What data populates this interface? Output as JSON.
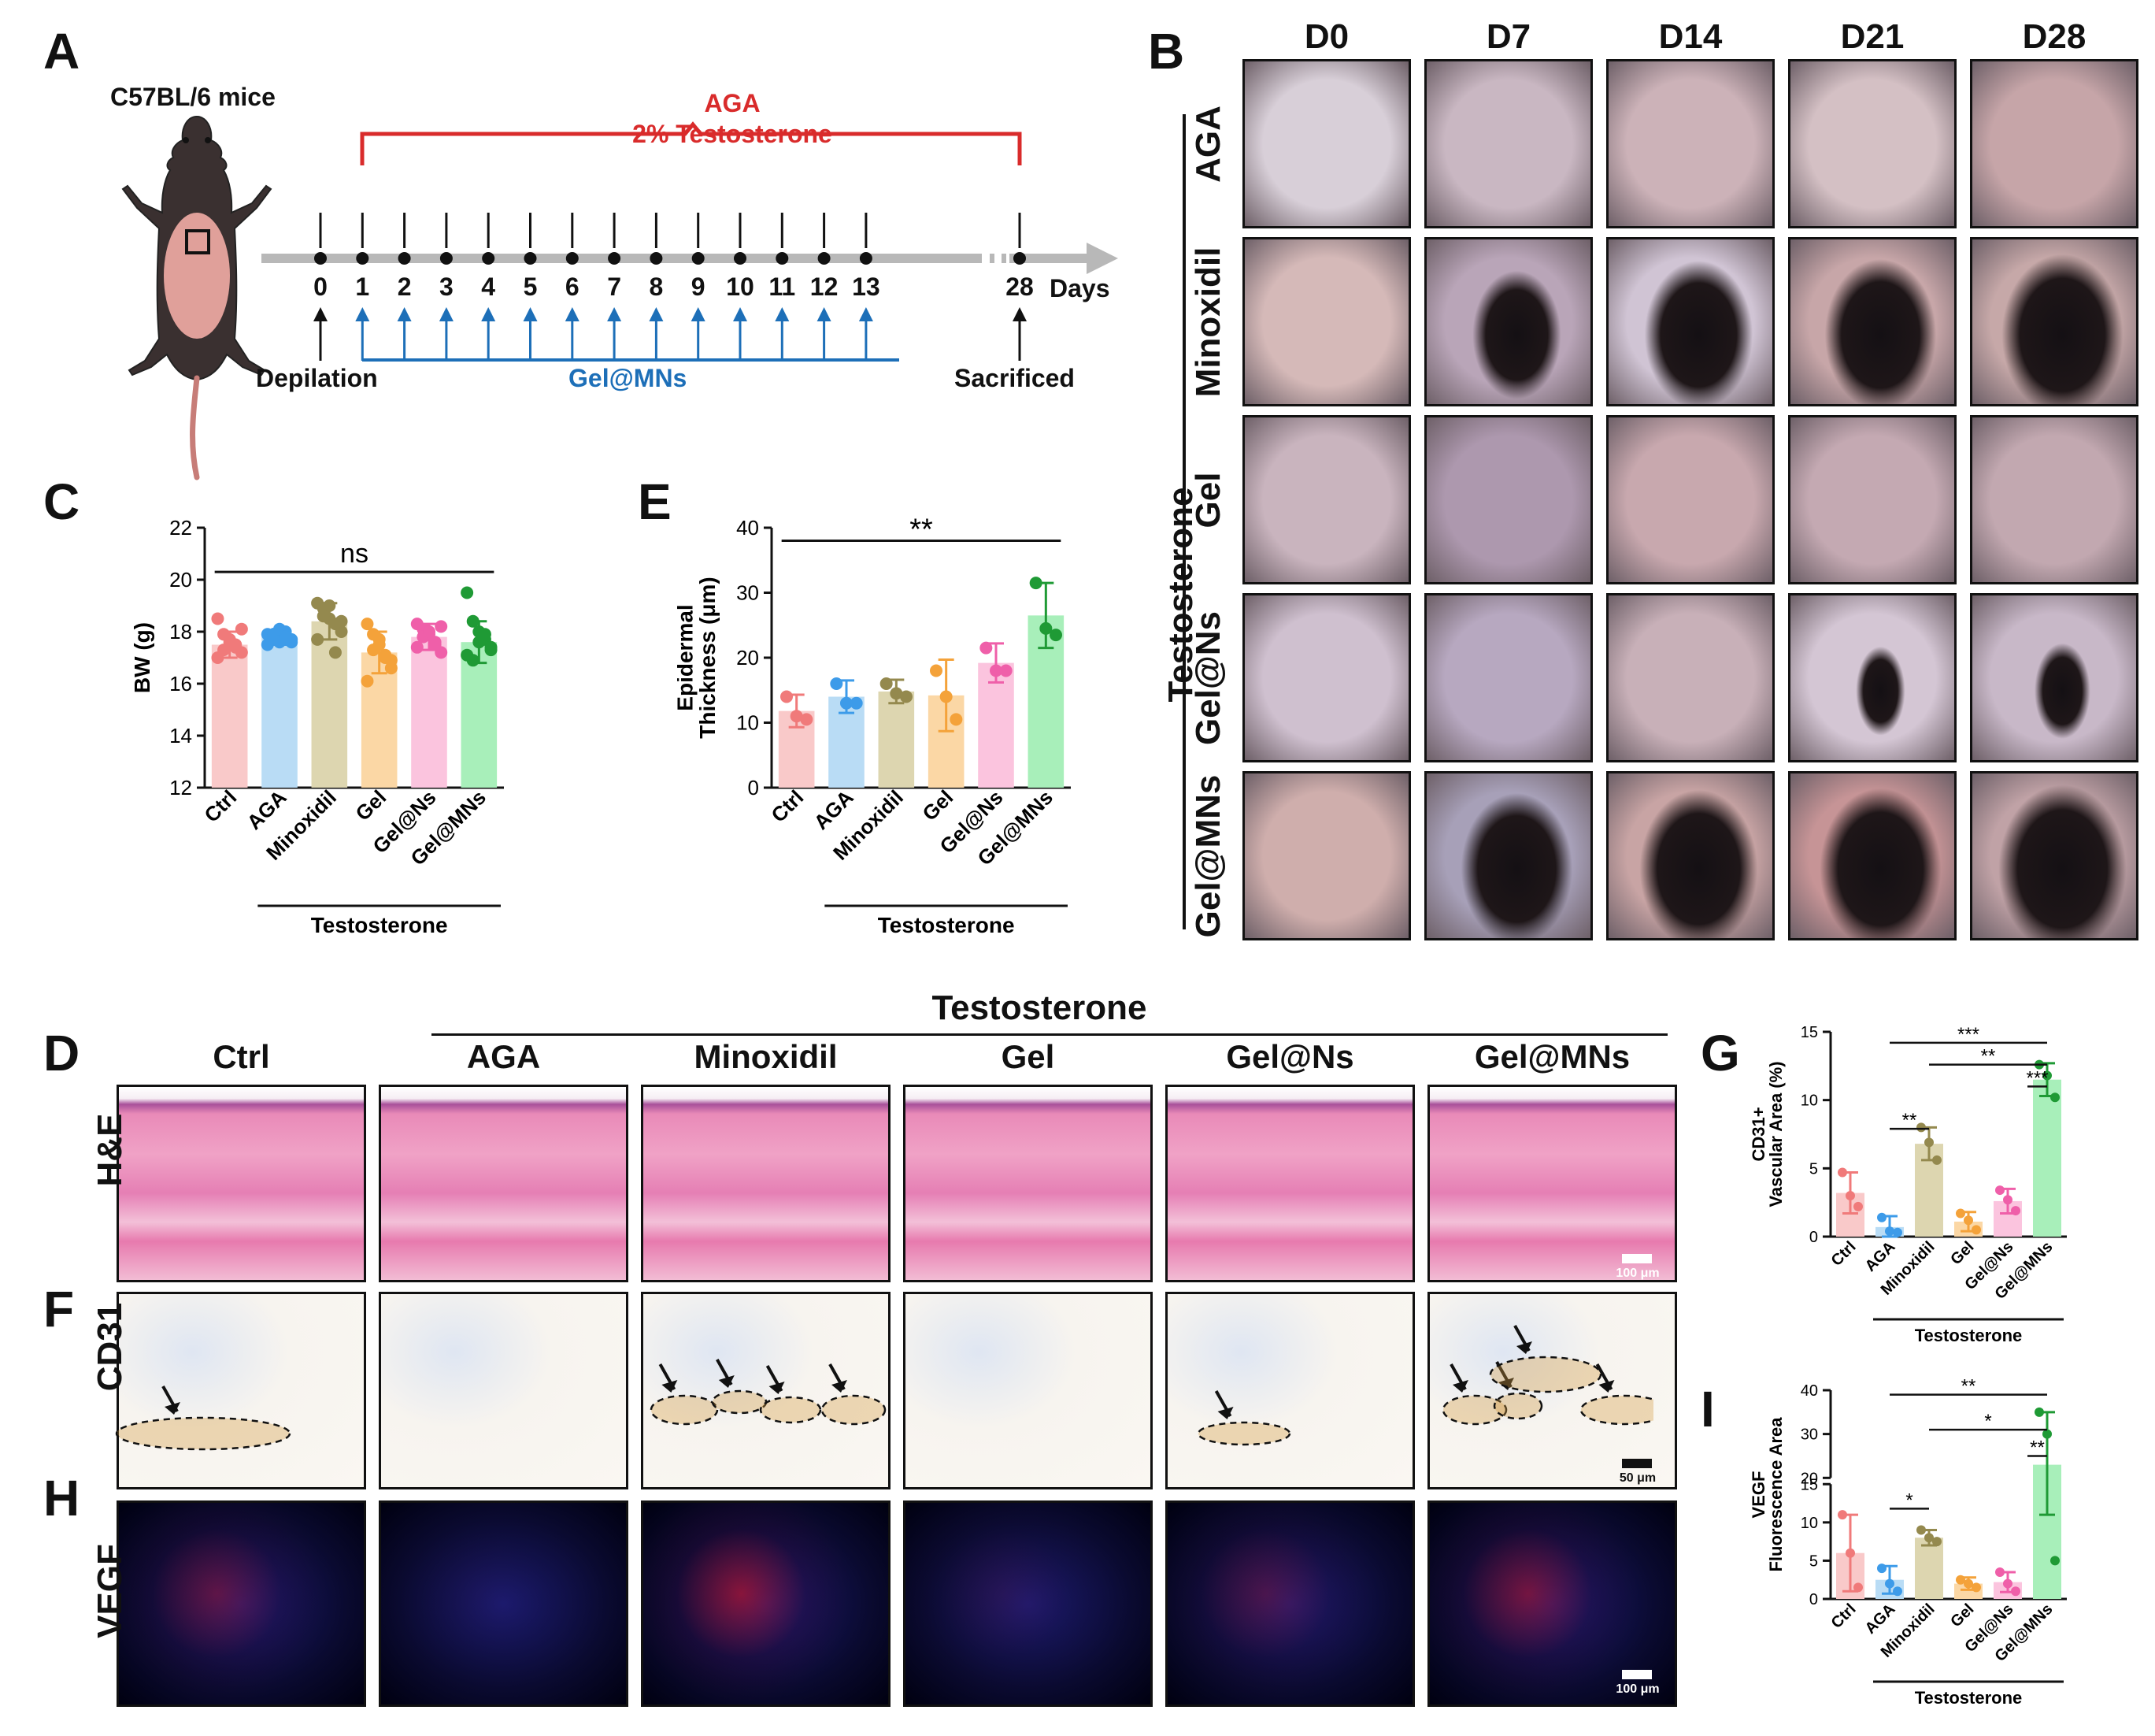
{
  "panels": {
    "A": "A",
    "B": "B",
    "C": "C",
    "D": "D",
    "E": "E",
    "F": "F",
    "G": "G",
    "H": "H",
    "I": "I"
  },
  "panelA": {
    "mouse_label": "C57BL/6 mice",
    "aga_label": "AGA",
    "testosterone_label": "2% Testosterone",
    "days": [
      "0",
      "1",
      "2",
      "3",
      "4",
      "5",
      "6",
      "7",
      "8",
      "9",
      "10",
      "11",
      "12",
      "13"
    ],
    "last_day": "28",
    "days_label": "Days",
    "depilation": "Depilation",
    "gel_mns": "Gel@MNs",
    "sacrificed": "Sacrificed",
    "colors": {
      "red": "#d92b2b",
      "blue": "#1d6fb8",
      "axis": "#b8b8b8"
    }
  },
  "panelB": {
    "columns": [
      "D0",
      "D7",
      "D14",
      "D21",
      "D28"
    ],
    "rows": [
      "AGA",
      "Minoxidil",
      "Gel",
      "Gel@Ns",
      "Gel@MNs"
    ],
    "group_label": "Testosterone"
  },
  "panelC": {
    "chart_data": {
      "type": "bar",
      "categories": [
        "Ctrl",
        "AGA",
        "Minoxidil",
        "Gel",
        "Gel@Ns",
        "Gel@MNs"
      ],
      "values": [
        17.5,
        17.8,
        18.4,
        17.2,
        17.8,
        17.6
      ],
      "errors": [
        0.5,
        0.3,
        0.7,
        0.8,
        0.5,
        0.8
      ],
      "points": [
        [
          18.5,
          17.9,
          17.6,
          17.4,
          17.2,
          17.0,
          17.3,
          17.7,
          17.5,
          18.1
        ],
        [
          17.9,
          17.8,
          17.6,
          18.0,
          17.7,
          17.5,
          17.9,
          18.1,
          17.8,
          17.6
        ],
        [
          19.1,
          18.9,
          18.5,
          18.3,
          18.0,
          17.7,
          18.6,
          19.0,
          17.2,
          18.4
        ],
        [
          18.3,
          17.9,
          17.5,
          17.0,
          16.6,
          16.1,
          17.3,
          17.7,
          17.1,
          16.9
        ],
        [
          18.3,
          18.1,
          17.9,
          17.6,
          17.2,
          17.4,
          17.8,
          18.0,
          17.5,
          18.2
        ],
        [
          19.5,
          18.4,
          18.0,
          17.7,
          17.3,
          17.1,
          16.9,
          17.6,
          17.9,
          17.4
        ]
      ],
      "ylabel": "BW (g)",
      "ylim": [
        12,
        22
      ],
      "yticks": [
        "12",
        "14",
        "16",
        "18",
        "20",
        "22"
      ],
      "significance": "ns",
      "group_label": "Testosterone"
    }
  },
  "panelE": {
    "chart_data": {
      "type": "bar",
      "categories": [
        "Ctrl",
        "AGA",
        "Minoxidil",
        "Gel",
        "Gel@Ns",
        "Gel@MNs"
      ],
      "values": [
        11.8,
        14.0,
        14.8,
        14.2,
        19.2,
        26.5
      ],
      "errors": [
        2.5,
        2.5,
        1.8,
        5.5,
        3.0,
        5.0
      ],
      "points": [
        [
          14.0,
          11.0,
          10.5
        ],
        [
          16.0,
          13.0,
          13.0
        ],
        [
          16.0,
          14.5,
          14.0
        ],
        [
          18.0,
          14.0,
          10.5
        ],
        [
          21.5,
          18.0,
          18.0
        ],
        [
          31.5,
          24.5,
          23.5
        ]
      ],
      "ylabel_line1": "Epidermal",
      "ylabel_line2": "Thickness (μm)",
      "ylim": [
        0,
        40
      ],
      "yticks": [
        "0",
        "10",
        "20",
        "30",
        "40"
      ],
      "significance": "**",
      "group_label": "Testosterone"
    }
  },
  "panelDFH": {
    "columns": [
      "Ctrl",
      "AGA",
      "Minoxidil",
      "Gel",
      "Gel@Ns",
      "Gel@MNs"
    ],
    "group_label": "Testosterone",
    "rows": [
      "H&E",
      "CD31",
      "VEGF"
    ],
    "scale_he": "100 μm",
    "scale_cd31": "50 μm",
    "scale_vegf": "100 μm"
  },
  "panelG": {
    "chart_data": {
      "type": "bar",
      "categories": [
        "Ctrl",
        "AGA",
        "Minoxidil",
        "Gel",
        "Gel@Ns",
        "Gel@MNs"
      ],
      "values": [
        3.2,
        0.7,
        6.8,
        1.1,
        2.6,
        11.5
      ],
      "errors": [
        1.5,
        0.8,
        1.2,
        0.7,
        0.9,
        1.2
      ],
      "points": [
        [
          4.7,
          3.0,
          2.2
        ],
        [
          1.4,
          0.4,
          0.3
        ],
        [
          8.0,
          6.9,
          5.6
        ],
        [
          1.7,
          1.2,
          0.5
        ],
        [
          3.4,
          2.7,
          1.9
        ],
        [
          12.6,
          11.8,
          10.2
        ]
      ],
      "ylabel_line1": "CD31+",
      "ylabel_line2": "Vascular Area (%)",
      "ylim": [
        0,
        15
      ],
      "yticks": [
        "0",
        "5",
        "10",
        "15"
      ],
      "significance": [
        "***",
        "**",
        "**",
        "***"
      ],
      "group_label": "Testosterone"
    }
  },
  "panelI": {
    "chart_data": {
      "type": "bar",
      "categories": [
        "Ctrl",
        "AGA",
        "Minoxidil",
        "Gel",
        "Gel@Ns",
        "Gel@MNs"
      ],
      "values": [
        6.0,
        2.5,
        8.0,
        2.0,
        2.2,
        23.0
      ],
      "errors": [
        5.0,
        1.8,
        1.0,
        0.8,
        1.3,
        12.0
      ],
      "points": [
        [
          11.0,
          6.0,
          1.5
        ],
        [
          4.0,
          2.0,
          1.0
        ],
        [
          9.0,
          8.0,
          7.5
        ],
        [
          2.5,
          2.0,
          1.5
        ],
        [
          3.5,
          2.0,
          1.0
        ],
        [
          35.0,
          30.0,
          5.0
        ]
      ],
      "ylabel_line1": "VEGF",
      "ylabel_line2": "Fluorescence Area",
      "ylim": [
        0,
        40
      ],
      "axis_break": [
        15,
        20
      ],
      "yticks": [
        "0",
        "5",
        "10",
        "15",
        "20",
        "30",
        "40"
      ],
      "significance": [
        "**",
        "*",
        "*",
        "**"
      ],
      "group_label": "Testosterone"
    }
  },
  "bar_colors": [
    "#f9c9c9",
    "#b9dcf5",
    "#ddd6b0",
    "#fbd7a5",
    "#fbc4de",
    "#a8efba"
  ],
  "dot_colors": [
    "#f07a7a",
    "#3d9be9",
    "#94894e",
    "#f4a23a",
    "#ef5fa9",
    "#1f9a35"
  ]
}
